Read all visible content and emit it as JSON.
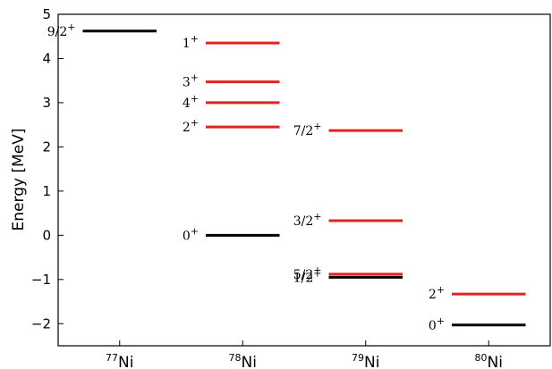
{
  "chart_data": {
    "type": "level-scheme",
    "ylabel": "Energy [MeV]",
    "ylim": [
      -2.5,
      5
    ],
    "yticks": [
      5,
      4,
      3,
      2,
      1,
      0,
      -1,
      -2
    ],
    "ytick_labels": [
      "5",
      "4",
      "3",
      "2",
      "1",
      "0",
      "−1",
      "−2"
    ],
    "categories": [
      {
        "mass": "77",
        "element": "Ni"
      },
      {
        "mass": "78",
        "element": "Ni"
      },
      {
        "mass": "79",
        "element": "Ni"
      },
      {
        "mass": "80",
        "element": "Ni"
      }
    ],
    "levels": [
      {
        "nucleus": 0,
        "label": "9/2",
        "parity": "+",
        "energy": 4.62,
        "color": "#000000"
      },
      {
        "nucleus": 1,
        "label": "1",
        "parity": "+",
        "energy": 4.35,
        "color": "#e0231c"
      },
      {
        "nucleus": 1,
        "label": "3",
        "parity": "+",
        "energy": 3.47,
        "color": "#e0231c"
      },
      {
        "nucleus": 1,
        "label": "4",
        "parity": "+",
        "energy": 3.0,
        "color": "#e0231c"
      },
      {
        "nucleus": 1,
        "label": "2",
        "parity": "+",
        "energy": 2.45,
        "color": "#e0231c"
      },
      {
        "nucleus": 1,
        "label": "0",
        "parity": "+",
        "energy": 0.0,
        "color": "#000000"
      },
      {
        "nucleus": 2,
        "label": "7/2",
        "parity": "+",
        "energy": 2.37,
        "color": "#e0231c"
      },
      {
        "nucleus": 2,
        "label": "3/2",
        "parity": "+",
        "energy": 0.33,
        "color": "#e0231c"
      },
      {
        "nucleus": 2,
        "label": "5/2",
        "parity": "+",
        "energy": -0.88,
        "color": "#e0231c"
      },
      {
        "nucleus": 2,
        "label": "1/2",
        "parity": "+",
        "energy": -0.95,
        "color": "#000000"
      },
      {
        "nucleus": 3,
        "label": "2",
        "parity": "+",
        "energy": -1.33,
        "color": "#e0231c"
      },
      {
        "nucleus": 3,
        "label": "0",
        "parity": "+",
        "energy": -2.03,
        "color": "#000000"
      }
    ]
  }
}
